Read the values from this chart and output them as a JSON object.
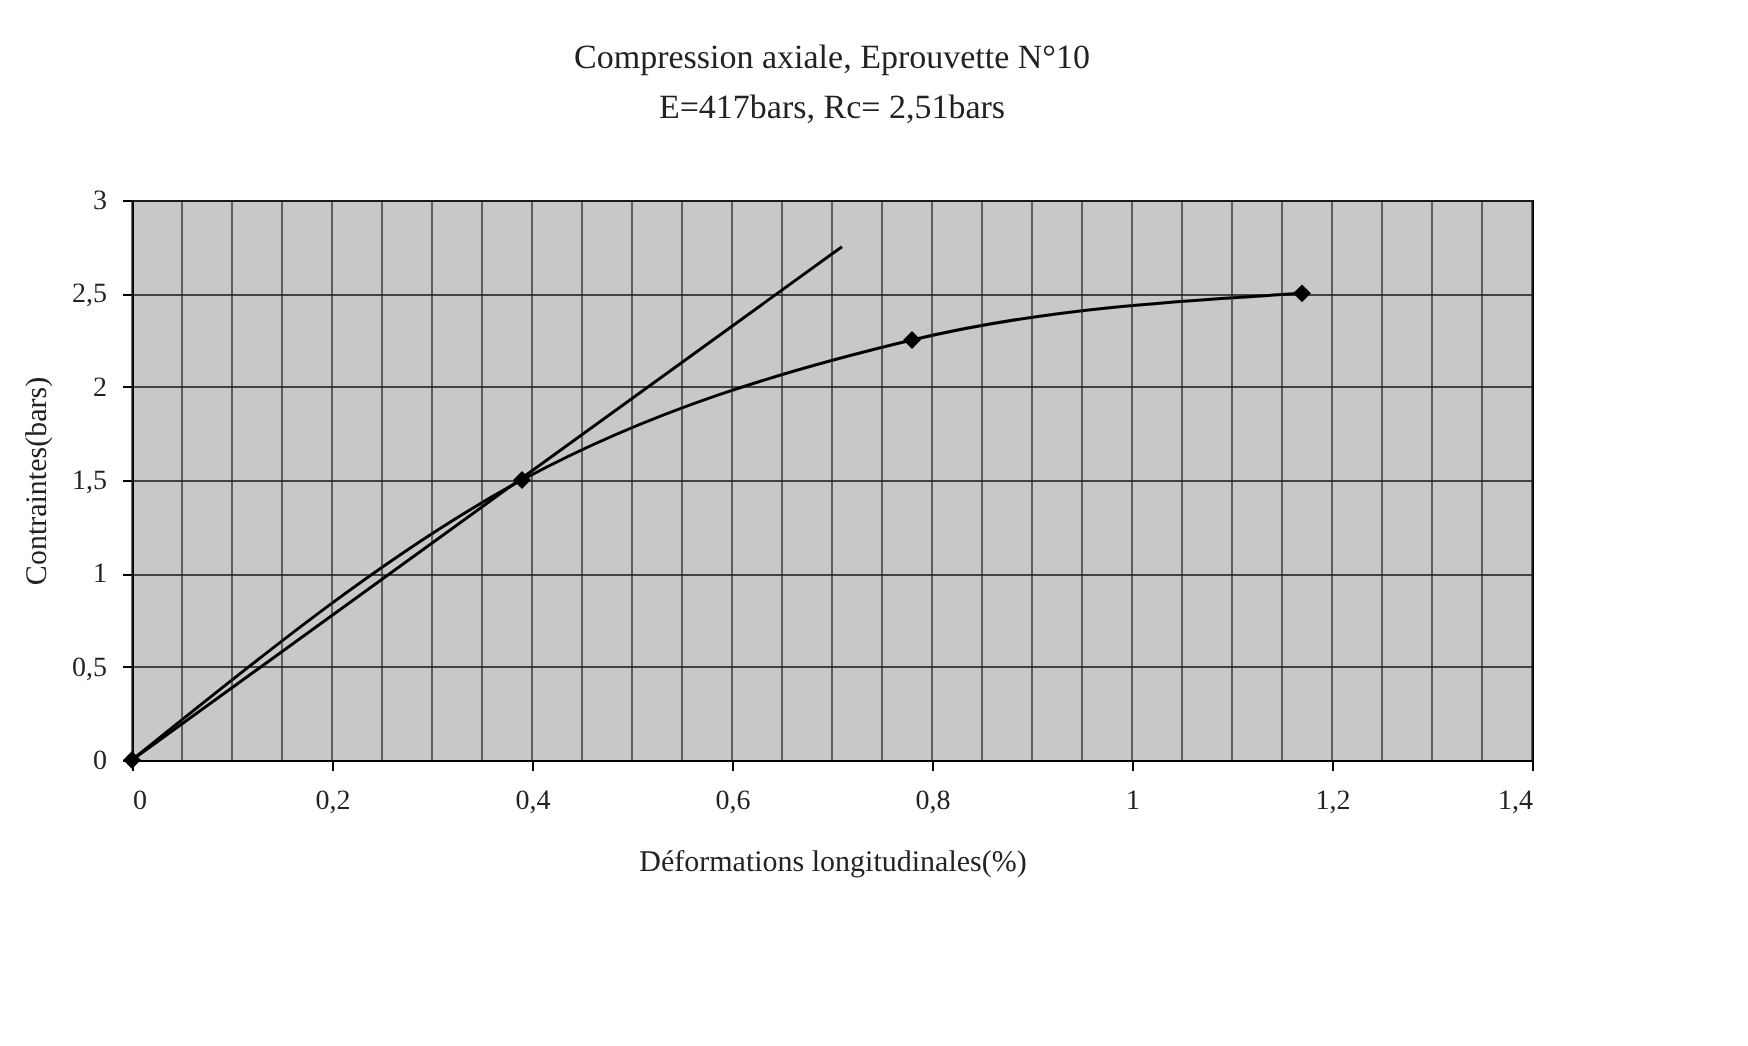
{
  "chart_data": {
    "type": "line",
    "title": "Compression axiale, Eprouvette N°10",
    "subtitle": "E=417bars, Rc= 2,51bars",
    "xlabel": "Déformations longitudinales(%)",
    "ylabel": "Contraintes(bars)",
    "series": [
      {
        "color": "#000000",
        "x": [
          0,
          0.39,
          0.78,
          1.17
        ],
        "values": [
          0,
          1.5,
          2.25,
          2.5
        ],
        "marker": "diamond"
      },
      {
        "color": "#000000",
        "x": [
          0,
          0.71
        ],
        "values": [
          0,
          2.75
        ],
        "marker": "none"
      }
    ],
    "xlim": [
      0,
      1.4
    ],
    "xticks": [
      {
        "value": 0,
        "label": "0"
      },
      {
        "value": 0.2,
        "label": "0,2"
      },
      {
        "value": 0.4,
        "label": "0,4"
      },
      {
        "value": 0.6,
        "label": "0,6"
      },
      {
        "value": 0.8,
        "label": "0,8"
      },
      {
        "value": 1,
        "label": "1"
      },
      {
        "value": 1.2,
        "label": "1,2"
      },
      {
        "value": 1.4,
        "label": "1,4"
      }
    ],
    "ylim": [
      0,
      3
    ],
    "yticks": [
      {
        "value": 0,
        "label": "0"
      },
      {
        "value": 0.5,
        "label": "0,5"
      },
      {
        "value": 1,
        "label": "1"
      },
      {
        "value": 1.5,
        "label": "1,5"
      },
      {
        "value": 2,
        "label": "2"
      },
      {
        "value": 2.5,
        "label": "2,5"
      },
      {
        "value": 3,
        "label": "3"
      }
    ],
    "grid": true,
    "line_style": "solid"
  }
}
